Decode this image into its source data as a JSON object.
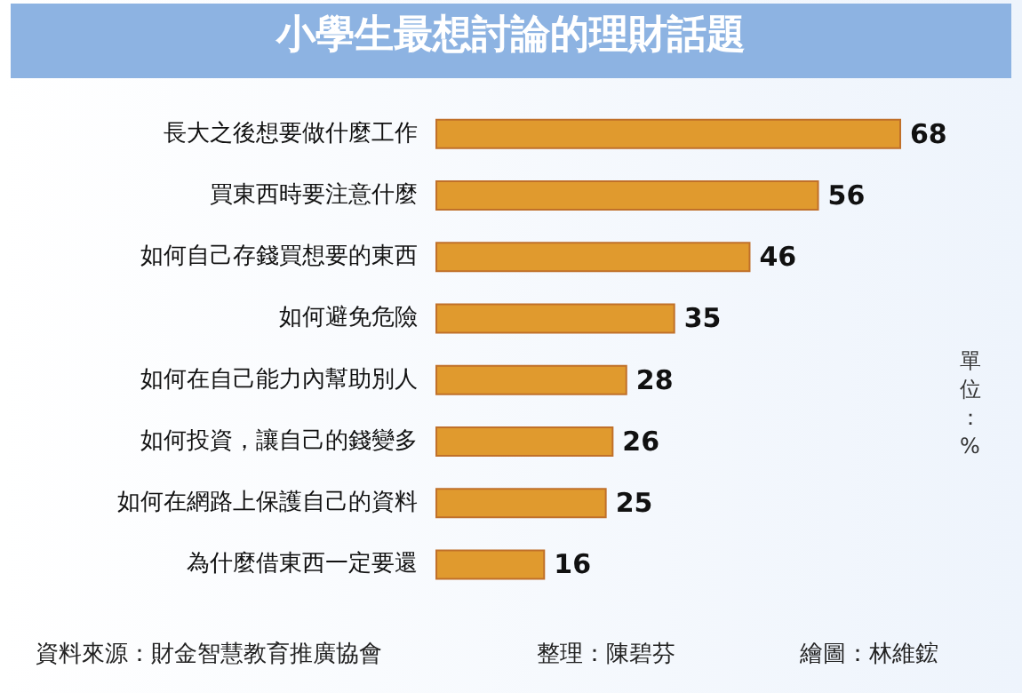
{
  "chart_data": {
    "type": "bar",
    "orientation": "horizontal",
    "title": "小學生最想討論的理財話題",
    "categories": [
      "長大之後想要做什麼工作",
      "買東西時要注意什麼",
      "如何自己存錢買想要的東西",
      "如何避免危險",
      "如何在自己能力內幫助別人",
      "如何投資，讓自己的錢變多",
      "如何在網路上保護自己的資料",
      "為什麼借東西一定要還"
    ],
    "values": [
      68,
      56,
      46,
      35,
      28,
      26,
      25,
      16
    ],
    "color": "#e09a2e",
    "data_labels": true,
    "annotations": [
      "單位：%",
      "資料來源：財金智慧教育推廣協會",
      "整理：陳碧芬",
      "繪圖：林維鋐"
    ]
  }
}
